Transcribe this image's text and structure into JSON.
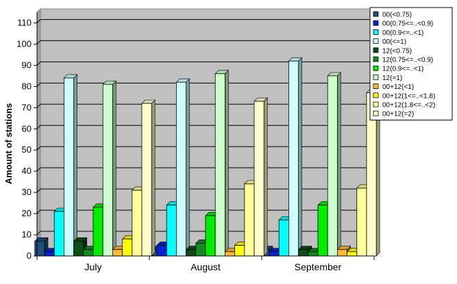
{
  "chart_data": {
    "type": "bar",
    "title": "",
    "xlabel": "",
    "ylabel": "Amount of stations",
    "ylim": [
      0,
      115
    ],
    "yticks": [
      0,
      10,
      20,
      30,
      40,
      50,
      60,
      70,
      80,
      90,
      100,
      110
    ],
    "grid": true,
    "legend_position": "top-right",
    "plot_background": "#c0c0c0",
    "categories": [
      "July",
      "August",
      "September"
    ],
    "series": [
      {
        "name": "00(<0.75)",
        "color": "#1f4e79",
        "values": [
          7,
          3,
          3
        ]
      },
      {
        "name": "00(0.75<=..<0.9)",
        "color": "#0a1fd6",
        "values": [
          2,
          5,
          2
        ]
      },
      {
        "name": "00(0.9<=..<1)",
        "color": "#00ffff",
        "values": [
          21,
          24,
          17
        ]
      },
      {
        "name": "00(<=1)",
        "color": "#ccffff",
        "values": [
          84,
          82,
          92
        ]
      },
      {
        "name": "12(<0.75)",
        "color": "#0d4d16",
        "values": [
          7,
          3,
          3
        ]
      },
      {
        "name": "12(0.75<=..<0.9)",
        "color": "#138a22",
        "values": [
          3,
          6,
          2
        ]
      },
      {
        "name": "12(0.9<=..<1)",
        "color": "#00ee00",
        "values": [
          23,
          19,
          24
        ]
      },
      {
        "name": "12(=1)",
        "color": "#ccffcc",
        "values": [
          81,
          86,
          85
        ]
      },
      {
        "name": "00+12(<1)",
        "color": "#ffbb33",
        "values": [
          3,
          2,
          3
        ]
      },
      {
        "name": "00+12(1<=..<1.8)",
        "color": "#ffff00",
        "values": [
          8,
          5,
          2
        ]
      },
      {
        "name": "00+12(1.8<=..<2)",
        "color": "#ffff99",
        "values": [
          31,
          34,
          32
        ]
      },
      {
        "name": "00+12(=2)",
        "color": "#ffffcc",
        "values": [
          72,
          73,
          77
        ]
      }
    ]
  }
}
